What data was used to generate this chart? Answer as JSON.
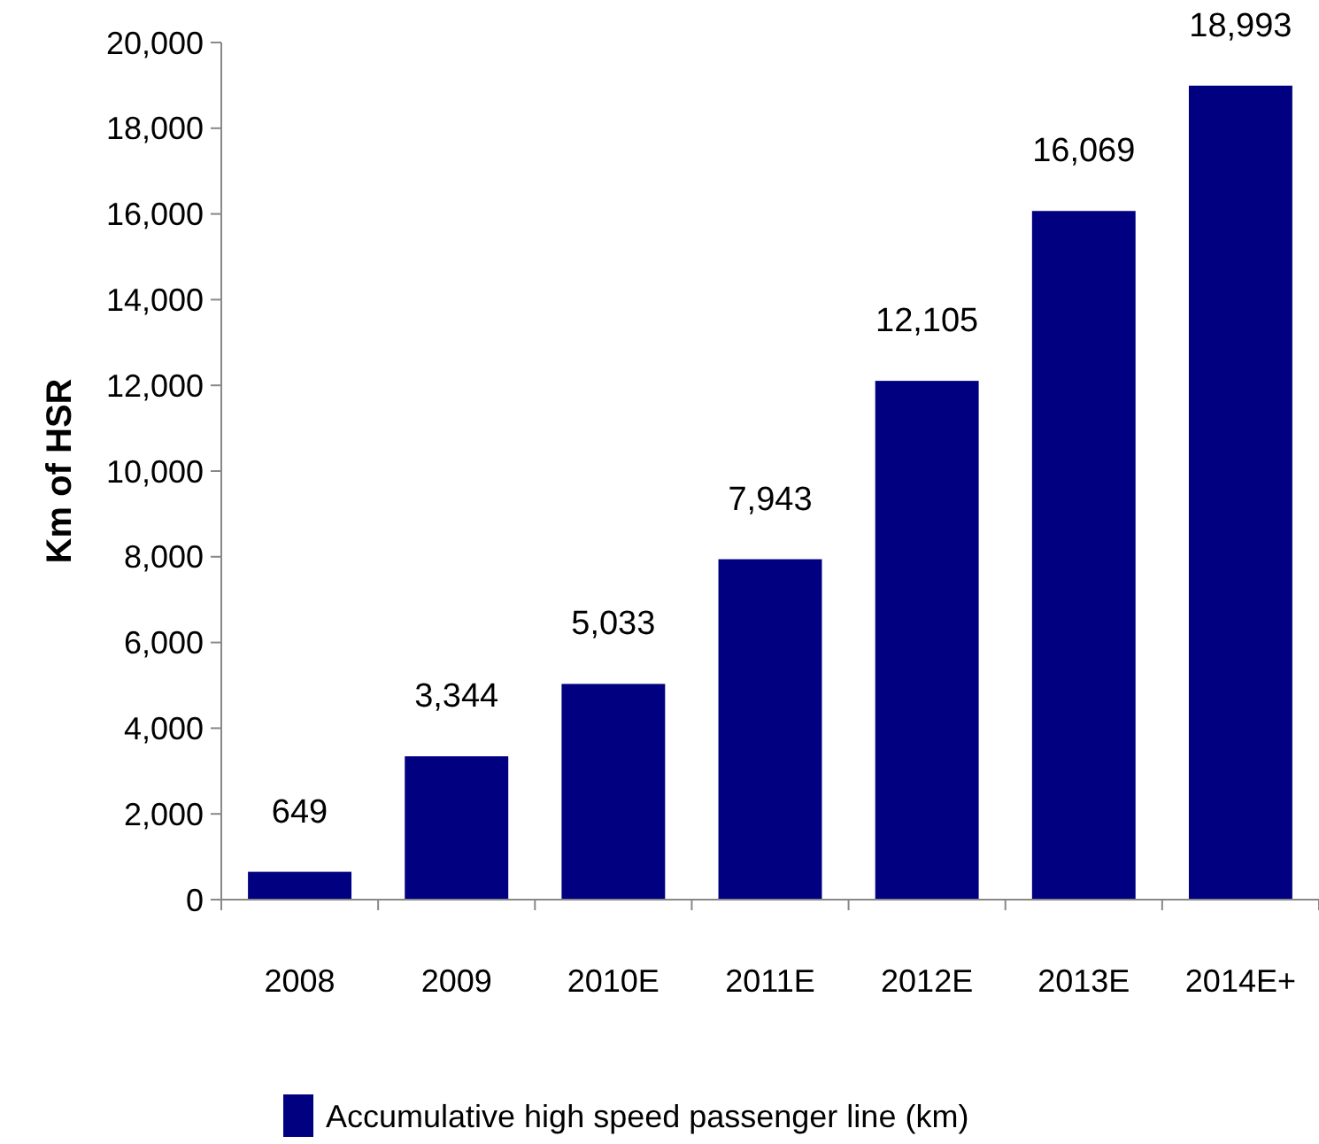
{
  "chart_data": {
    "type": "bar",
    "ylabel": "Km of HSR",
    "categories": [
      "2008",
      "2009",
      "2010E",
      "2011E",
      "2012E",
      "2013E",
      "2014E+"
    ],
    "series": [
      {
        "name": "Accumulative high speed passenger line (km)",
        "color": "#000080",
        "values": [
          649,
          3344,
          5033,
          7943,
          12105,
          16069,
          18993
        ],
        "value_labels": [
          "649",
          "3,344",
          "5,033",
          "7,943",
          "12,105",
          "16,069",
          "18,993"
        ]
      }
    ],
    "ylim": [
      0,
      20000
    ],
    "yticks": [
      {
        "value": 0,
        "label": "0"
      },
      {
        "value": 2000,
        "label": "2,000"
      },
      {
        "value": 4000,
        "label": "4,000"
      },
      {
        "value": 6000,
        "label": "6,000"
      },
      {
        "value": 8000,
        "label": "8,000"
      },
      {
        "value": 10000,
        "label": "10,000"
      },
      {
        "value": 12000,
        "label": "12,000"
      },
      {
        "value": 14000,
        "label": "14,000"
      },
      {
        "value": 16000,
        "label": "16,000"
      },
      {
        "value": 18000,
        "label": "18,000"
      },
      {
        "value": 20000,
        "label": "20,000"
      }
    ],
    "legend": "bottom",
    "grid": false
  }
}
